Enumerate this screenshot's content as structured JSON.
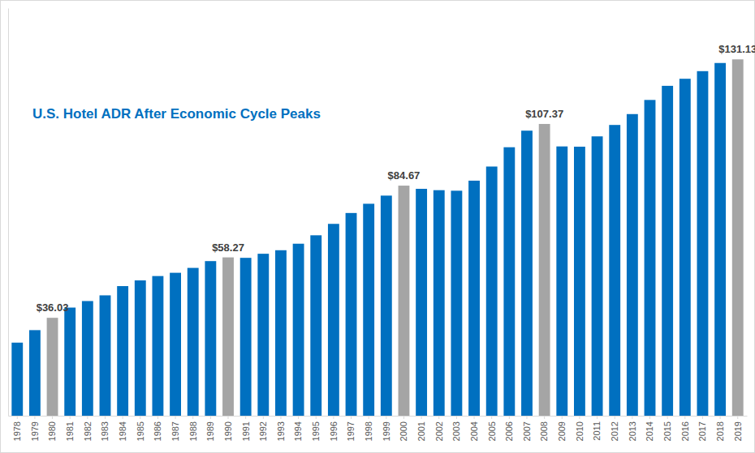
{
  "chart_data": {
    "type": "bar",
    "title": "U.S. Hotel ADR After Economic Cycle Peaks",
    "categories": [
      "1978",
      "1979",
      "1980",
      "1981",
      "1982",
      "1983",
      "1984",
      "1985",
      "1986",
      "1987",
      "1988",
      "1989",
      "1990",
      "1991",
      "1992",
      "1993",
      "1994",
      "1995",
      "1996",
      "1997",
      "1998",
      "1999",
      "2000",
      "2001",
      "2002",
      "2003",
      "2004",
      "2005",
      "2006",
      "2007",
      "2008",
      "2009",
      "2010",
      "2011",
      "2012",
      "2013",
      "2014",
      "2015",
      "2016",
      "2017",
      "2018",
      "2019"
    ],
    "values": [
      26.9,
      31.5,
      36.03,
      39.8,
      42.2,
      44.3,
      47.7,
      49.8,
      51.4,
      52.6,
      54.4,
      56.9,
      58.27,
      58.1,
      59.6,
      60.9,
      63.3,
      66.4,
      70.6,
      74.6,
      78.0,
      81.0,
      84.67,
      83.5,
      83.0,
      82.8,
      86.5,
      91.7,
      98.8,
      104.9,
      107.37,
      99.1,
      99.0,
      102.8,
      107.0,
      111.0,
      116.2,
      121.4,
      124.0,
      126.8,
      129.8,
      131.13
    ],
    "value_labels": [
      null,
      null,
      "$36.03",
      null,
      null,
      null,
      null,
      null,
      null,
      null,
      null,
      null,
      "$58.27",
      null,
      null,
      null,
      null,
      null,
      null,
      null,
      null,
      null,
      "$84.67",
      null,
      null,
      null,
      null,
      null,
      null,
      null,
      "$107.37",
      null,
      null,
      null,
      null,
      null,
      null,
      null,
      null,
      null,
      null,
      "$131.13"
    ],
    "colors": [
      "#0070c0",
      "#0070c0",
      "#a5a5a5",
      "#0070c0",
      "#0070c0",
      "#0070c0",
      "#0070c0",
      "#0070c0",
      "#0070c0",
      "#0070c0",
      "#0070c0",
      "#0070c0",
      "#a5a5a5",
      "#0070c0",
      "#0070c0",
      "#0070c0",
      "#0070c0",
      "#0070c0",
      "#0070c0",
      "#0070c0",
      "#0070c0",
      "#0070c0",
      "#a5a5a5",
      "#0070c0",
      "#0070c0",
      "#0070c0",
      "#0070c0",
      "#0070c0",
      "#0070c0",
      "#0070c0",
      "#a5a5a5",
      "#0070c0",
      "#0070c0",
      "#0070c0",
      "#0070c0",
      "#0070c0",
      "#0070c0",
      "#0070c0",
      "#0070c0",
      "#0070c0",
      "#0070c0",
      "#a5a5a5"
    ],
    "ylim": [
      0,
      150
    ],
    "tick_labels": "x",
    "grid": false
  }
}
